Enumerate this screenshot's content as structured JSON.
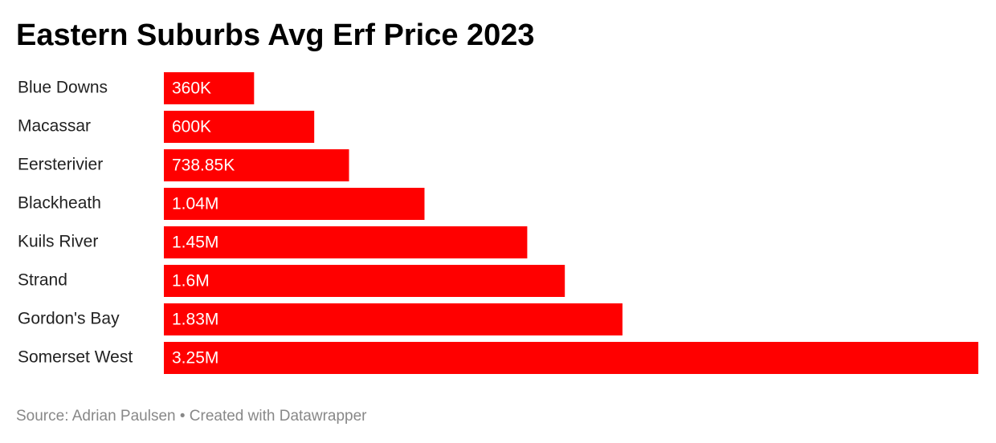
{
  "chart_data": {
    "type": "bar",
    "orientation": "horizontal",
    "title": "Eastern Suburbs Avg Erf Price 2023",
    "categories": [
      "Blue Downs",
      "Macassar",
      "Eersterivier",
      "Blackheath",
      "Kuils River",
      "Strand",
      "Gordon's Bay",
      "Somerset West"
    ],
    "values": [
      360000,
      600000,
      738850,
      1040000,
      1450000,
      1600000,
      1830000,
      3250000
    ],
    "value_labels": [
      "360K",
      "600K",
      "738.85K",
      "1.04M",
      "1.45M",
      "1.6M",
      "1.83M",
      "3.25M"
    ],
    "color": "#ff0000",
    "xlim": [
      0,
      3250000
    ],
    "source": "Source: Adrian Paulsen • Created with Datawrapper"
  }
}
